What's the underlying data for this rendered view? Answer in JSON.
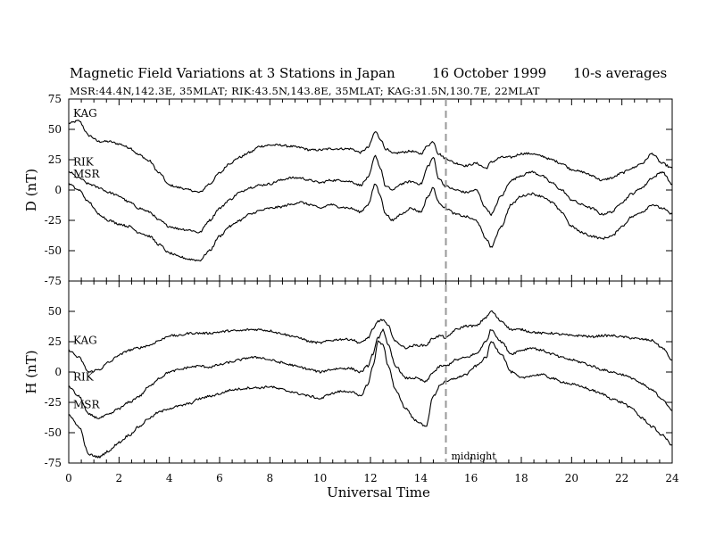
{
  "header": {
    "title": "Magnetic Field Variations at 3 Stations in Japan",
    "date": "16 October 1999",
    "averaging": "10-s averages",
    "stations": "MSR:44.4N,142.3E, 35MLAT;  RIK:43.5N,143.8E, 35MLAT;  KAG:31.5N,130.7E, 22MLAT"
  },
  "chart_data": [
    {
      "type": "line",
      "panel": "D",
      "ylabel": "D (nT)",
      "ylim": [
        -75,
        75
      ],
      "yticks": [
        75,
        50,
        25,
        0,
        -25,
        -50,
        -75
      ],
      "series": [
        {
          "name": "KAG",
          "color": "#000000",
          "x": [
            0,
            0.4,
            0.8,
            1.2,
            1.6,
            2,
            2.4,
            2.8,
            3.2,
            3.6,
            4,
            4.4,
            4.8,
            5.2,
            5.6,
            6,
            6.4,
            6.8,
            7.2,
            7.6,
            8,
            8.4,
            8.8,
            9.2,
            9.6,
            10,
            10.4,
            10.8,
            11.2,
            11.6,
            11.9,
            12.2,
            12.4,
            12.6,
            12.9,
            13.2,
            13.6,
            14,
            14.3,
            14.5,
            14.7,
            15,
            15.4,
            15.8,
            16.2,
            16.6,
            16.8,
            17.2,
            17.6,
            18,
            18.4,
            18.8,
            19.2,
            19.6,
            20,
            20.4,
            20.8,
            21.2,
            21.6,
            22,
            22.4,
            22.8,
            23.2,
            23.6,
            24
          ],
          "y": [
            55,
            57,
            45,
            40,
            40,
            38,
            35,
            29,
            24,
            14,
            4,
            2,
            0,
            -2,
            5,
            14,
            22,
            27,
            31,
            36,
            37,
            37,
            36,
            35,
            33,
            33,
            34,
            34,
            34,
            31,
            35,
            48,
            42,
            34,
            30,
            31,
            32,
            30,
            37,
            40,
            30,
            26,
            22,
            20,
            22,
            18,
            23,
            27,
            27,
            30,
            30,
            28,
            25,
            22,
            17,
            15,
            12,
            8,
            10,
            14,
            18,
            22,
            30,
            22,
            18
          ]
        },
        {
          "name": "RIK",
          "color": "#000000",
          "x": [
            0,
            0.4,
            0.8,
            1.2,
            1.6,
            2,
            2.4,
            2.8,
            3.2,
            3.6,
            4,
            4.4,
            4.8,
            5.2,
            5.6,
            6,
            6.4,
            6.8,
            7.2,
            7.6,
            8,
            8.4,
            8.8,
            9.2,
            9.6,
            10,
            10.4,
            10.8,
            11.2,
            11.6,
            11.9,
            12.2,
            12.4,
            12.6,
            12.9,
            13.2,
            13.6,
            14,
            14.3,
            14.5,
            14.7,
            15,
            15.4,
            15.8,
            16.2,
            16.6,
            16.8,
            17.2,
            17.6,
            18,
            18.4,
            18.8,
            19.2,
            19.6,
            20,
            20.4,
            20.8,
            21.2,
            21.6,
            22,
            22.4,
            22.8,
            23.2,
            23.6,
            24
          ],
          "y": [
            15,
            10,
            5,
            2,
            -2,
            -5,
            -10,
            -15,
            -18,
            -25,
            -30,
            -32,
            -33,
            -35,
            -25,
            -15,
            -8,
            -2,
            2,
            4,
            5,
            8,
            10,
            10,
            8,
            6,
            8,
            8,
            7,
            4,
            10,
            28,
            18,
            3,
            0,
            5,
            7,
            5,
            20,
            27,
            10,
            3,
            0,
            -2,
            0,
            -15,
            -20,
            -5,
            8,
            12,
            15,
            12,
            6,
            0,
            -8,
            -12,
            -15,
            -20,
            -18,
            -10,
            -3,
            2,
            10,
            15,
            5
          ]
        },
        {
          "name": "MSR",
          "color": "#000000",
          "x": [
            0,
            0.4,
            0.8,
            1.2,
            1.6,
            2,
            2.4,
            2.8,
            3.2,
            3.6,
            4,
            4.4,
            4.8,
            5.2,
            5.6,
            6,
            6.4,
            6.8,
            7.2,
            7.6,
            8,
            8.4,
            8.8,
            9.2,
            9.6,
            10,
            10.4,
            10.8,
            11.2,
            11.6,
            11.9,
            12.2,
            12.4,
            12.6,
            12.9,
            13.2,
            13.6,
            14,
            14.3,
            14.5,
            14.7,
            15,
            15.4,
            15.8,
            16.2,
            16.6,
            16.8,
            17.2,
            17.6,
            18,
            18.4,
            18.8,
            19.2,
            19.6,
            20,
            20.4,
            20.8,
            21.2,
            21.6,
            22,
            22.4,
            22.8,
            23.2,
            23.6,
            24
          ],
          "y": [
            5,
            0,
            -10,
            -20,
            -25,
            -28,
            -30,
            -35,
            -38,
            -45,
            -52,
            -55,
            -57,
            -58,
            -50,
            -38,
            -30,
            -25,
            -20,
            -17,
            -15,
            -14,
            -12,
            -10,
            -12,
            -15,
            -12,
            -14,
            -15,
            -18,
            -12,
            5,
            -5,
            -20,
            -25,
            -20,
            -15,
            -18,
            -5,
            2,
            -10,
            -15,
            -20,
            -22,
            -25,
            -40,
            -47,
            -30,
            -12,
            -5,
            -3,
            -5,
            -10,
            -18,
            -30,
            -35,
            -38,
            -40,
            -38,
            -30,
            -22,
            -18,
            -12,
            -15,
            -20
          ]
        }
      ]
    },
    {
      "type": "line",
      "panel": "H",
      "ylabel": "H (nT)",
      "xlabel": "Universal Time",
      "ylim": [
        -75,
        75
      ],
      "xlim": [
        0,
        24
      ],
      "yticks": [
        50,
        25,
        0,
        -25,
        -50,
        -75
      ],
      "xticks": [
        0,
        2,
        4,
        6,
        8,
        10,
        12,
        14,
        16,
        18,
        20,
        22,
        24
      ],
      "annotation": {
        "text": "midnight",
        "x": 15
      },
      "series": [
        {
          "name": "KAG",
          "color": "#000000",
          "x": [
            0,
            0.4,
            0.8,
            1.2,
            1.6,
            2,
            2.4,
            2.8,
            3.2,
            3.6,
            4,
            4.4,
            4.8,
            5.2,
            5.6,
            6,
            6.4,
            6.8,
            7.2,
            7.6,
            8,
            8.4,
            8.8,
            9.2,
            9.6,
            10,
            10.4,
            10.8,
            11.2,
            11.6,
            11.9,
            12.1,
            12.3,
            12.5,
            12.7,
            13,
            13.4,
            13.8,
            14.2,
            14.5,
            14.8,
            15,
            15.4,
            15.8,
            16.2,
            16.6,
            16.8,
            17.2,
            17.6,
            18,
            18.4,
            18.8,
            19.2,
            19.6,
            20,
            20.4,
            20.8,
            21.2,
            21.6,
            22,
            22.4,
            22.8,
            23.2,
            23.6,
            24
          ],
          "y": [
            18,
            12,
            0,
            2,
            8,
            14,
            18,
            20,
            22,
            26,
            30,
            30,
            32,
            32,
            32,
            33,
            34,
            34,
            35,
            35,
            34,
            32,
            30,
            28,
            25,
            24,
            26,
            27,
            27,
            24,
            28,
            35,
            42,
            43,
            38,
            25,
            20,
            22,
            22,
            28,
            30,
            28,
            35,
            38,
            38,
            45,
            50,
            42,
            35,
            35,
            33,
            32,
            32,
            31,
            30,
            30,
            29,
            30,
            30,
            29,
            28,
            27,
            26,
            20,
            10
          ]
        },
        {
          "name": "RIK",
          "color": "#000000",
          "x": [
            0,
            0.4,
            0.8,
            1.2,
            1.6,
            2,
            2.4,
            2.8,
            3.2,
            3.6,
            4,
            4.4,
            4.8,
            5.2,
            5.6,
            6,
            6.4,
            6.8,
            7.2,
            7.6,
            8,
            8.4,
            8.8,
            9.2,
            9.6,
            10,
            10.4,
            10.8,
            11.2,
            11.6,
            11.9,
            12.1,
            12.3,
            12.5,
            12.7,
            13,
            13.4,
            13.8,
            14.2,
            14.5,
            14.8,
            15,
            15.4,
            15.8,
            16.2,
            16.6,
            16.8,
            17.2,
            17.6,
            18,
            18.4,
            18.8,
            19.2,
            19.6,
            20,
            20.4,
            20.8,
            21.2,
            21.6,
            22,
            22.4,
            22.8,
            23.2,
            23.6,
            24
          ],
          "y": [
            -12,
            -20,
            -35,
            -38,
            -35,
            -30,
            -25,
            -20,
            -12,
            -5,
            0,
            2,
            4,
            5,
            4,
            6,
            8,
            10,
            12,
            12,
            10,
            8,
            6,
            4,
            2,
            0,
            2,
            3,
            3,
            0,
            5,
            15,
            28,
            35,
            22,
            5,
            -5,
            -5,
            -8,
            0,
            5,
            5,
            10,
            12,
            15,
            25,
            35,
            25,
            15,
            18,
            20,
            18,
            15,
            12,
            10,
            8,
            5,
            2,
            0,
            -2,
            -5,
            -10,
            -15,
            -22,
            -32
          ]
        },
        {
          "name": "MSR",
          "color": "#000000",
          "x": [
            0,
            0.4,
            0.8,
            1.2,
            1.6,
            2,
            2.4,
            2.8,
            3.2,
            3.6,
            4,
            4.4,
            4.8,
            5.2,
            5.6,
            6,
            6.4,
            6.8,
            7.2,
            7.6,
            8,
            8.4,
            8.8,
            9.2,
            9.6,
            10,
            10.4,
            10.8,
            11.2,
            11.6,
            11.9,
            12.1,
            12.3,
            12.5,
            12.7,
            13,
            13.4,
            13.8,
            14.2,
            14.5,
            14.8,
            15,
            15.4,
            15.8,
            16.2,
            16.6,
            16.8,
            17.2,
            17.6,
            18,
            18.4,
            18.8,
            19.2,
            19.6,
            20,
            20.4,
            20.8,
            21.2,
            21.6,
            22,
            22.4,
            22.8,
            23.2,
            23.6,
            24
          ],
          "y": [
            -35,
            -45,
            -68,
            -70,
            -65,
            -58,
            -52,
            -45,
            -38,
            -33,
            -30,
            -28,
            -26,
            -22,
            -20,
            -18,
            -15,
            -14,
            -13,
            -13,
            -12,
            -14,
            -16,
            -18,
            -20,
            -22,
            -18,
            -16,
            -16,
            -20,
            -10,
            5,
            25,
            23,
            5,
            -15,
            -30,
            -40,
            -45,
            -20,
            -10,
            -8,
            -5,
            -2,
            5,
            12,
            25,
            15,
            0,
            -5,
            -3,
            -2,
            -5,
            -8,
            -10,
            -12,
            -15,
            -18,
            -22,
            -25,
            -30,
            -38,
            -45,
            -52,
            -60
          ]
        }
      ]
    }
  ]
}
